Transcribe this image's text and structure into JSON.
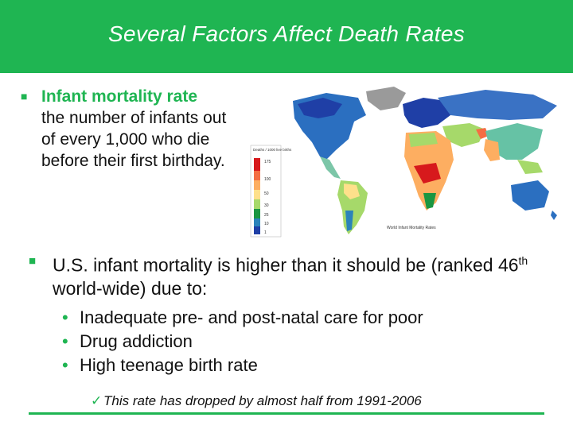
{
  "slide": {
    "title": "Several Factors Affect Death Rates",
    "term": {
      "label": "Infant mortality rate",
      "definition": "the number of infants out of every 1,000 who die before their first birthday."
    },
    "main_point": {
      "text_before": "U.S. infant mortality is higher than it should be (ranked 46",
      "superscript": "th",
      "text_after": " world-wide) due to:"
    },
    "causes": [
      "Inadequate pre- and post-natal care for poor",
      "Drug addiction",
      "High teenage birth rate"
    ],
    "note": "This rate has dropped by almost half from 1991-2006"
  },
  "map": {
    "legend_title": "Deaths / 1000 live births",
    "legend_values": [
      "175",
      "100",
      "50",
      "30",
      "25",
      "10",
      "1"
    ],
    "caption": "World Infant Mortality Rates"
  },
  "colors": {
    "accent": "#1fb552",
    "title_text": "#ffffff"
  }
}
